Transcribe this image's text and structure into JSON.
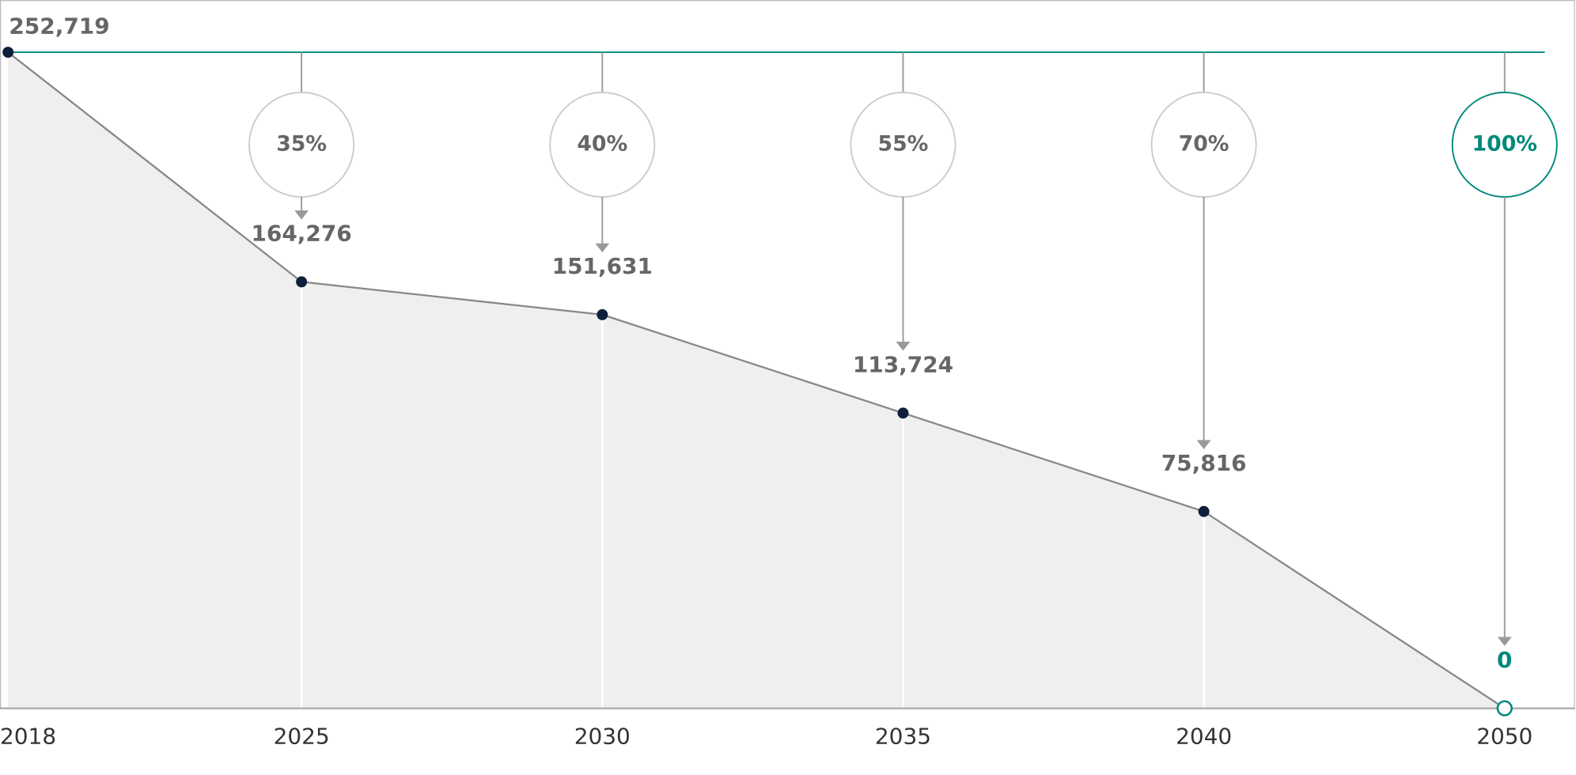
{
  "chart_data": {
    "type": "area",
    "categories": [
      "2018",
      "2025",
      "2030",
      "2035",
      "2040",
      "2050"
    ],
    "values": [
      252719,
      164276,
      151631,
      113724,
      75816,
      0
    ],
    "value_labels": [
      "252,719",
      "164,276",
      "151,631",
      "113,724",
      "75,816",
      "0"
    ],
    "reduction_labels": [
      null,
      "35%",
      "40%",
      "55%",
      "70%",
      "100%"
    ],
    "ylim": [
      0,
      252719
    ],
    "line_color": "#888888",
    "fill_color": "#efefef",
    "point_color": "#0d1f3c",
    "accent_color": "#00897b"
  }
}
